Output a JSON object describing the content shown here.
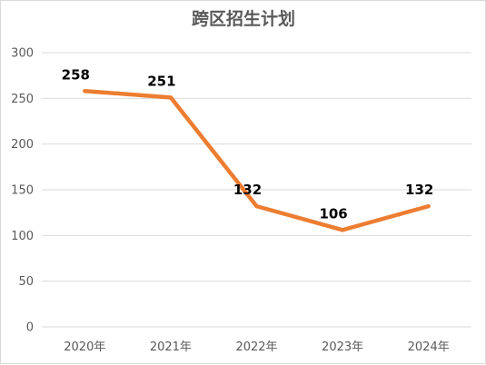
{
  "chart_data": {
    "type": "line",
    "title": "跨区招生计划",
    "categories": [
      "2020年",
      "2021年",
      "2022年",
      "2023年",
      "2024年"
    ],
    "series": [
      {
        "values": [
          258,
          251,
          132,
          106,
          132
        ],
        "color": "#ED7D31",
        "data_labels": [
          "258",
          "251",
          "132",
          "106",
          "132"
        ]
      }
    ],
    "y_ticks": [
      "0",
      "50",
      "100",
      "150",
      "200",
      "250",
      "300"
    ],
    "ylim": [
      0,
      300
    ],
    "grid": true,
    "legend": "none",
    "xlabel": "",
    "ylabel": ""
  }
}
